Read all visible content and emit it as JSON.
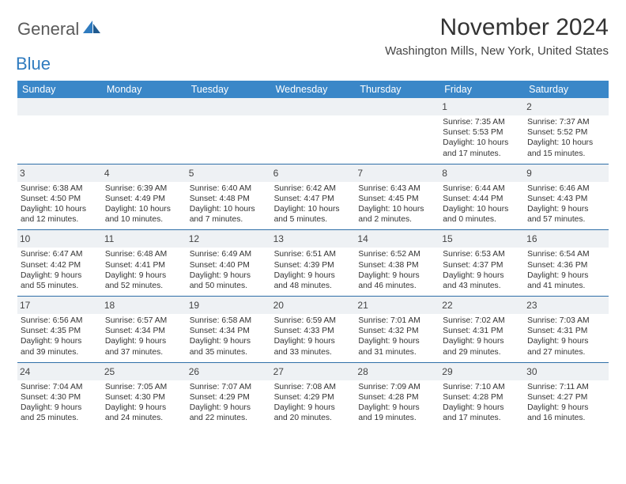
{
  "logo": {
    "general": "General",
    "blue": "Blue"
  },
  "title": "November 2024",
  "location": "Washington Mills, New York, United States",
  "header_bg": "#3a87c8",
  "weekdays": [
    "Sunday",
    "Monday",
    "Tuesday",
    "Wednesday",
    "Thursday",
    "Friday",
    "Saturday"
  ],
  "weeks": [
    [
      null,
      null,
      null,
      null,
      null,
      {
        "n": "1",
        "sr": "7:35 AM",
        "ss": "5:53 PM",
        "dl1": "Daylight: 10 hours",
        "dl2": "and 17 minutes."
      },
      {
        "n": "2",
        "sr": "7:37 AM",
        "ss": "5:52 PM",
        "dl1": "Daylight: 10 hours",
        "dl2": "and 15 minutes."
      }
    ],
    [
      {
        "n": "3",
        "sr": "6:38 AM",
        "ss": "4:50 PM",
        "dl1": "Daylight: 10 hours",
        "dl2": "and 12 minutes."
      },
      {
        "n": "4",
        "sr": "6:39 AM",
        "ss": "4:49 PM",
        "dl1": "Daylight: 10 hours",
        "dl2": "and 10 minutes."
      },
      {
        "n": "5",
        "sr": "6:40 AM",
        "ss": "4:48 PM",
        "dl1": "Daylight: 10 hours",
        "dl2": "and 7 minutes."
      },
      {
        "n": "6",
        "sr": "6:42 AM",
        "ss": "4:47 PM",
        "dl1": "Daylight: 10 hours",
        "dl2": "and 5 minutes."
      },
      {
        "n": "7",
        "sr": "6:43 AM",
        "ss": "4:45 PM",
        "dl1": "Daylight: 10 hours",
        "dl2": "and 2 minutes."
      },
      {
        "n": "8",
        "sr": "6:44 AM",
        "ss": "4:44 PM",
        "dl1": "Daylight: 10 hours",
        "dl2": "and 0 minutes."
      },
      {
        "n": "9",
        "sr": "6:46 AM",
        "ss": "4:43 PM",
        "dl1": "Daylight: 9 hours",
        "dl2": "and 57 minutes."
      }
    ],
    [
      {
        "n": "10",
        "sr": "6:47 AM",
        "ss": "4:42 PM",
        "dl1": "Daylight: 9 hours",
        "dl2": "and 55 minutes."
      },
      {
        "n": "11",
        "sr": "6:48 AM",
        "ss": "4:41 PM",
        "dl1": "Daylight: 9 hours",
        "dl2": "and 52 minutes."
      },
      {
        "n": "12",
        "sr": "6:49 AM",
        "ss": "4:40 PM",
        "dl1": "Daylight: 9 hours",
        "dl2": "and 50 minutes."
      },
      {
        "n": "13",
        "sr": "6:51 AM",
        "ss": "4:39 PM",
        "dl1": "Daylight: 9 hours",
        "dl2": "and 48 minutes."
      },
      {
        "n": "14",
        "sr": "6:52 AM",
        "ss": "4:38 PM",
        "dl1": "Daylight: 9 hours",
        "dl2": "and 46 minutes."
      },
      {
        "n": "15",
        "sr": "6:53 AM",
        "ss": "4:37 PM",
        "dl1": "Daylight: 9 hours",
        "dl2": "and 43 minutes."
      },
      {
        "n": "16",
        "sr": "6:54 AM",
        "ss": "4:36 PM",
        "dl1": "Daylight: 9 hours",
        "dl2": "and 41 minutes."
      }
    ],
    [
      {
        "n": "17",
        "sr": "6:56 AM",
        "ss": "4:35 PM",
        "dl1": "Daylight: 9 hours",
        "dl2": "and 39 minutes."
      },
      {
        "n": "18",
        "sr": "6:57 AM",
        "ss": "4:34 PM",
        "dl1": "Daylight: 9 hours",
        "dl2": "and 37 minutes."
      },
      {
        "n": "19",
        "sr": "6:58 AM",
        "ss": "4:34 PM",
        "dl1": "Daylight: 9 hours",
        "dl2": "and 35 minutes."
      },
      {
        "n": "20",
        "sr": "6:59 AM",
        "ss": "4:33 PM",
        "dl1": "Daylight: 9 hours",
        "dl2": "and 33 minutes."
      },
      {
        "n": "21",
        "sr": "7:01 AM",
        "ss": "4:32 PM",
        "dl1": "Daylight: 9 hours",
        "dl2": "and 31 minutes."
      },
      {
        "n": "22",
        "sr": "7:02 AM",
        "ss": "4:31 PM",
        "dl1": "Daylight: 9 hours",
        "dl2": "and 29 minutes."
      },
      {
        "n": "23",
        "sr": "7:03 AM",
        "ss": "4:31 PM",
        "dl1": "Daylight: 9 hours",
        "dl2": "and 27 minutes."
      }
    ],
    [
      {
        "n": "24",
        "sr": "7:04 AM",
        "ss": "4:30 PM",
        "dl1": "Daylight: 9 hours",
        "dl2": "and 25 minutes."
      },
      {
        "n": "25",
        "sr": "7:05 AM",
        "ss": "4:30 PM",
        "dl1": "Daylight: 9 hours",
        "dl2": "and 24 minutes."
      },
      {
        "n": "26",
        "sr": "7:07 AM",
        "ss": "4:29 PM",
        "dl1": "Daylight: 9 hours",
        "dl2": "and 22 minutes."
      },
      {
        "n": "27",
        "sr": "7:08 AM",
        "ss": "4:29 PM",
        "dl1": "Daylight: 9 hours",
        "dl2": "and 20 minutes."
      },
      {
        "n": "28",
        "sr": "7:09 AM",
        "ss": "4:28 PM",
        "dl1": "Daylight: 9 hours",
        "dl2": "and 19 minutes."
      },
      {
        "n": "29",
        "sr": "7:10 AM",
        "ss": "4:28 PM",
        "dl1": "Daylight: 9 hours",
        "dl2": "and 17 minutes."
      },
      {
        "n": "30",
        "sr": "7:11 AM",
        "ss": "4:27 PM",
        "dl1": "Daylight: 9 hours",
        "dl2": "and 16 minutes."
      }
    ]
  ]
}
